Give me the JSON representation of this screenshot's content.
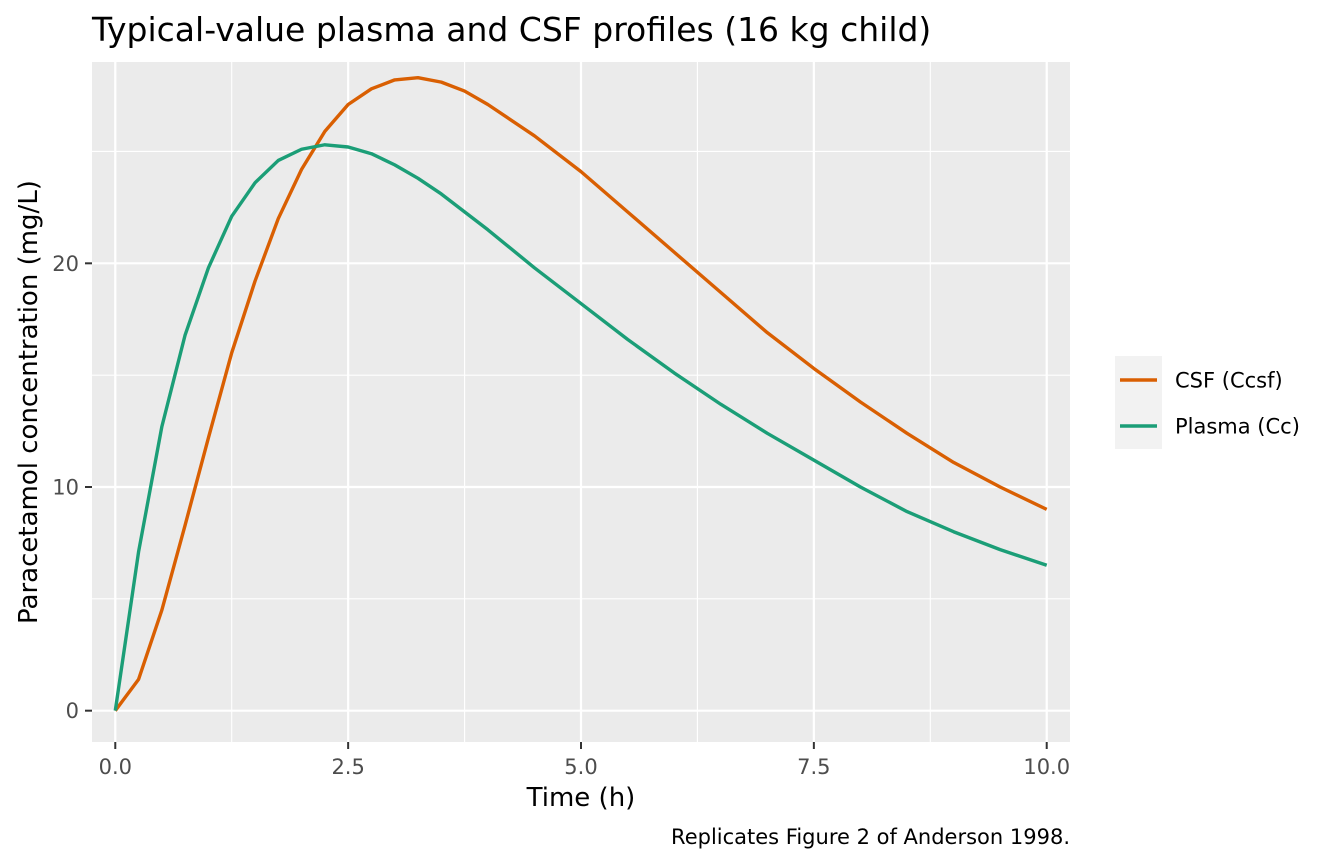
{
  "chart_data": {
    "type": "line",
    "title": "Typical-value plasma and CSF profiles (16 kg child)",
    "xlabel": "Time (h)",
    "ylabel": "Paracetamol concentration (mg/L)",
    "caption": "Replicates Figure 2 of Anderson 1998.",
    "xlim": [
      -0.25,
      10.25
    ],
    "ylim": [
      -1.4,
      29.0
    ],
    "x_ticks": [
      0,
      2.5,
      5,
      7.5,
      10
    ],
    "x_tick_labels": [
      "0.0",
      "2.5",
      "5.0",
      "7.5",
      "10.0"
    ],
    "y_ticks": [
      0,
      10,
      20
    ],
    "y_tick_labels": [
      "0",
      "10",
      "20"
    ],
    "grid": true,
    "legend_position": "right",
    "series": [
      {
        "name": "CSF (Ccsf)",
        "color": "#D95F02",
        "x": [
          0,
          0.25,
          0.5,
          0.75,
          1.0,
          1.25,
          1.5,
          1.75,
          2.0,
          2.25,
          2.5,
          2.75,
          3.0,
          3.25,
          3.5,
          3.75,
          4.0,
          4.5,
          5.0,
          5.5,
          6.0,
          6.5,
          7.0,
          7.5,
          8.0,
          8.5,
          9.0,
          9.5,
          10.0
        ],
        "y": [
          0,
          1.4,
          4.5,
          8.3,
          12.2,
          16.0,
          19.2,
          22.0,
          24.2,
          25.9,
          27.1,
          27.8,
          28.2,
          28.3,
          28.1,
          27.7,
          27.1,
          25.7,
          24.1,
          22.3,
          20.5,
          18.7,
          16.9,
          15.3,
          13.8,
          12.4,
          11.1,
          10.0,
          9.0
        ]
      },
      {
        "name": "Plasma (Cc)",
        "color": "#1B9E77",
        "x": [
          0,
          0.25,
          0.5,
          0.75,
          1.0,
          1.25,
          1.5,
          1.75,
          2.0,
          2.25,
          2.5,
          2.75,
          3.0,
          3.25,
          3.5,
          3.75,
          4.0,
          4.5,
          5.0,
          5.5,
          6.0,
          6.5,
          7.0,
          7.5,
          8.0,
          8.5,
          9.0,
          9.5,
          10.0
        ],
        "y": [
          0,
          7.1,
          12.7,
          16.8,
          19.8,
          22.1,
          23.6,
          24.6,
          25.1,
          25.3,
          25.2,
          24.9,
          24.4,
          23.8,
          23.1,
          22.3,
          21.5,
          19.8,
          18.2,
          16.6,
          15.1,
          13.7,
          12.4,
          11.2,
          10.0,
          8.9,
          8.0,
          7.2,
          6.5
        ]
      }
    ]
  }
}
